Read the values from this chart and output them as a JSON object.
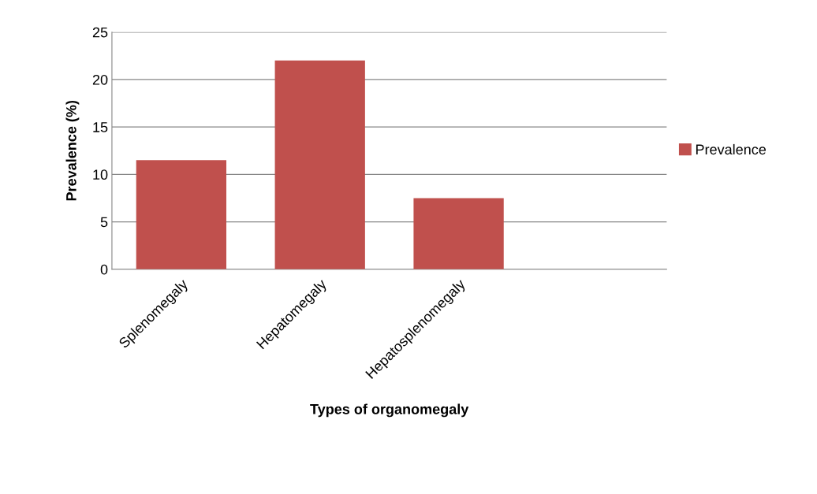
{
  "chart_data": {
    "type": "bar",
    "xlabel": "Types of organomegaly",
    "ylabel": "Prevalence (%)",
    "categories": [
      "Splenomegaly",
      "Hepatomegaly",
      "Hepatosplenomegaly",
      null
    ],
    "series": [
      {
        "name": "Prevalence",
        "color": "#c0504d",
        "values": [
          11.5,
          22,
          7.5,
          null
        ]
      }
    ],
    "ylim": [
      0,
      25
    ],
    "yticks": [
      0,
      5,
      10,
      15,
      20,
      25
    ],
    "grid": "y",
    "legend": "right"
  }
}
